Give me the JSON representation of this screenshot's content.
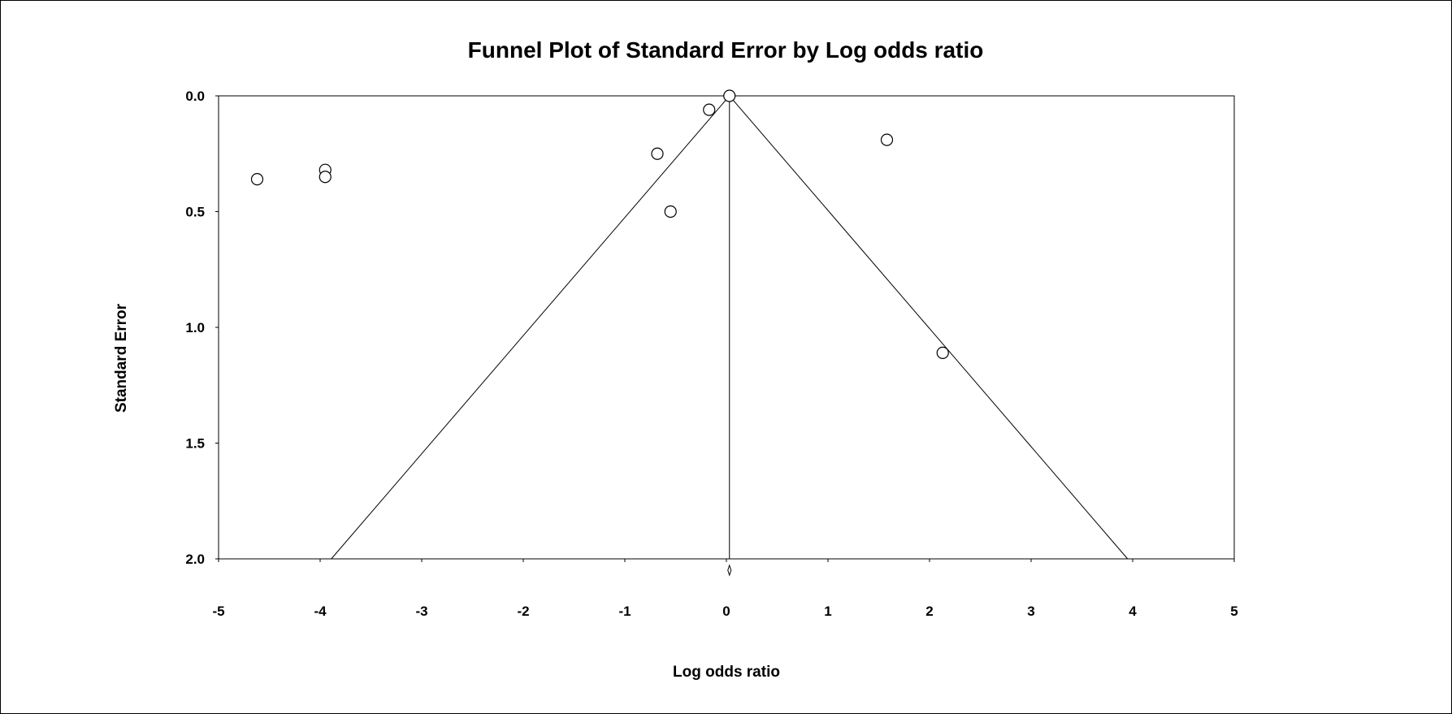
{
  "chart_data": {
    "type": "scatter",
    "title": "Funnel Plot of Standard Error by Log odds ratio",
    "xlabel": "Log odds ratio",
    "ylabel": "Standard Error",
    "xlim": [
      -5,
      5
    ],
    "ylim": [
      0,
      2
    ],
    "y_inverted": true,
    "x_ticks": [
      "-5",
      "-4",
      "-3",
      "-2",
      "-1",
      "0",
      "1",
      "2",
      "3",
      "4",
      "5"
    ],
    "y_ticks": [
      "0.0",
      "0.5",
      "1.0",
      "1.5",
      "2.0"
    ],
    "grid": false,
    "legend": "none",
    "combined_effect": 0.03,
    "funnel_multiplier": 1.96,
    "points": [
      {
        "x": 0.03,
        "y": 0.0
      },
      {
        "x": -0.17,
        "y": 0.06
      },
      {
        "x": -0.68,
        "y": 0.25
      },
      {
        "x": -0.55,
        "y": 0.5
      },
      {
        "x": 1.58,
        "y": 0.19
      },
      {
        "x": 2.13,
        "y": 1.11
      },
      {
        "x": -3.95,
        "y": 0.32
      },
      {
        "x": -3.95,
        "y": 0.35
      },
      {
        "x": -4.62,
        "y": 0.36
      }
    ],
    "colors": {
      "line": "#000000",
      "marker_fill": "#ffffff",
      "marker_stroke": "#000000"
    }
  }
}
